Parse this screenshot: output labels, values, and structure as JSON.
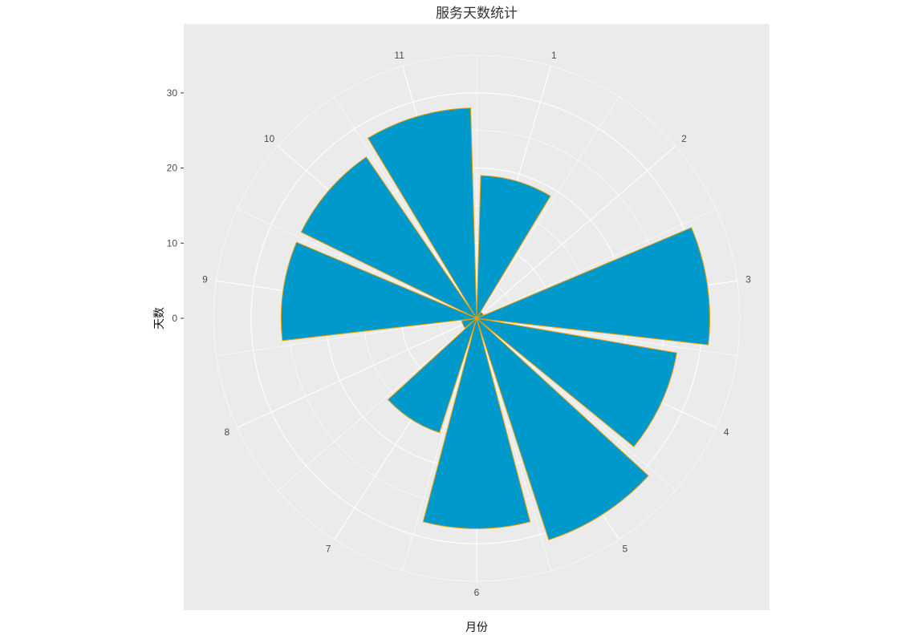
{
  "chart_data": {
    "type": "bar",
    "coord": "polar",
    "title": "服务天数统计",
    "xlabel": "月份",
    "ylabel": "天数",
    "categories": [
      "1",
      "2",
      "3",
      "4",
      "5",
      "6",
      "7",
      "8",
      "9",
      "10",
      "11"
    ],
    "values": [
      19,
      1,
      31,
      27,
      31,
      28,
      16,
      2,
      26,
      26,
      28
    ],
    "y_ticks": [
      0,
      10,
      20,
      30
    ],
    "ylim": [
      0,
      35
    ],
    "grid": true,
    "legend": "none",
    "colors": {
      "panel": "#ebebeb",
      "grid": "#ffffff",
      "bar_fill": "#0099cc",
      "bar_outline": "#e69f00"
    }
  }
}
